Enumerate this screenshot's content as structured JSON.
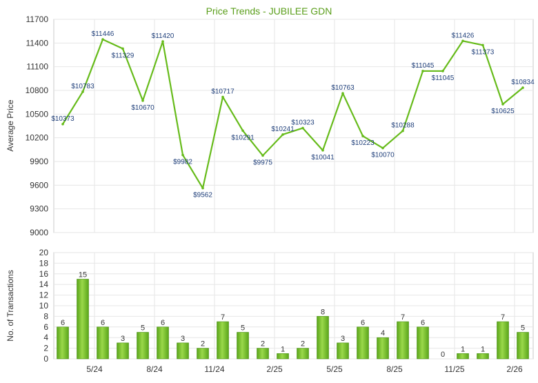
{
  "chart_data": [
    {
      "type": "line",
      "title": "Price Trends - JUBILEE GDN",
      "ylabel": "Average Price",
      "ylim": [
        9000,
        11700
      ],
      "y_ticks": [
        9000,
        9300,
        9600,
        9900,
        10200,
        10500,
        10800,
        11100,
        11400,
        11700
      ],
      "x_tick_labels": [
        "5/24",
        "8/24",
        "11/24",
        "2/25",
        "5/25",
        "8/25",
        "11/25",
        "2/26"
      ],
      "values": [
        10373,
        10783,
        11446,
        11329,
        10670,
        11420,
        9982,
        9562,
        10717,
        10291,
        9975,
        10241,
        10323,
        10041,
        10763,
        10223,
        10070,
        10288,
        11045,
        11045,
        11426,
        11373,
        10625,
        10834
      ],
      "point_labels": [
        "$10373",
        "$10783",
        "$11446",
        "$11329",
        "$10670",
        "$11420",
        "$9982",
        "$9562",
        "$10717",
        "$10291",
        "$9975",
        "$10241",
        "$10323",
        "$10041",
        "$10763",
        "$10223",
        "$10070",
        "$10288",
        "$11045",
        "$11045",
        "$11426",
        "$11373",
        "$10625",
        "$10834"
      ],
      "line_color": "#66bb1a",
      "title_color": "#5a9e1a",
      "grid": true
    },
    {
      "type": "bar",
      "ylabel": "No. of Transactions",
      "ylim": [
        0,
        20
      ],
      "y_ticks": [
        0,
        2,
        4,
        6,
        8,
        10,
        12,
        14,
        16,
        18,
        20
      ],
      "x_tick_labels": [
        "5/24",
        "8/24",
        "11/24",
        "2/25",
        "5/25",
        "8/25",
        "11/25",
        "2/26"
      ],
      "values": [
        6,
        15,
        6,
        3,
        5,
        6,
        3,
        2,
        7,
        5,
        2,
        1,
        2,
        8,
        3,
        6,
        4,
        7,
        6,
        0,
        1,
        1,
        7,
        5
      ],
      "bar_color": "#7cc62b",
      "grid": true
    }
  ]
}
